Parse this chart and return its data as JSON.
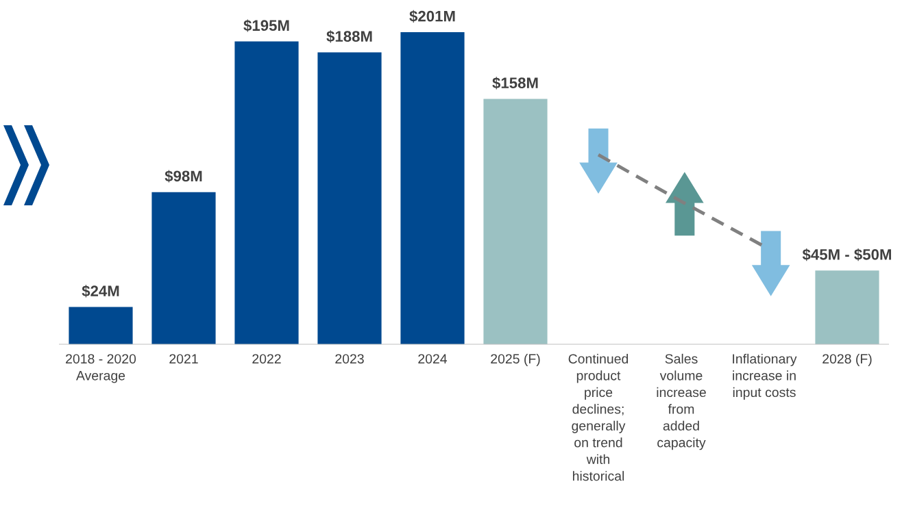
{
  "chart_data": {
    "type": "bar",
    "categories": [
      "2018 - 2020\nAverage",
      "2021",
      "2022",
      "2023",
      "2024",
      "2025 (F)",
      "Continued\nproduct\nprice\ndeclines;\ngenerally\non trend\nwith\nhistorical",
      "Sales\nvolume\nincrease\nfrom\nadded\ncapacity",
      "Inflationary\nincrease in\ninput costs",
      "2028 (F)"
    ],
    "series": [
      {
        "values": [
          24,
          98,
          195,
          188,
          201,
          158,
          null,
          null,
          null,
          47.5
        ],
        "colors": [
          "#004990",
          "#004990",
          "#004990",
          "#004990",
          "#004990",
          "#9bc1c2",
          null,
          null,
          null,
          "#9bc1c2"
        ],
        "value_labels": [
          "$24M",
          "$98M",
          "$195M",
          "$188M",
          "$201M",
          "$158M",
          null,
          null,
          null,
          null
        ]
      },
      {
        "type": "line",
        "color": "#808080",
        "line_style": "dashed",
        "marker": "none",
        "values": [
          null,
          null,
          null,
          null,
          null,
          null,
          122,
          92,
          63,
          null
        ]
      }
    ],
    "annotations": [
      {
        "text": "$45M - $50M",
        "x": "2028 (F)",
        "y": 47.5
      }
    ],
    "grid": false,
    "legend": false,
    "tick_labels": "x"
  }
}
